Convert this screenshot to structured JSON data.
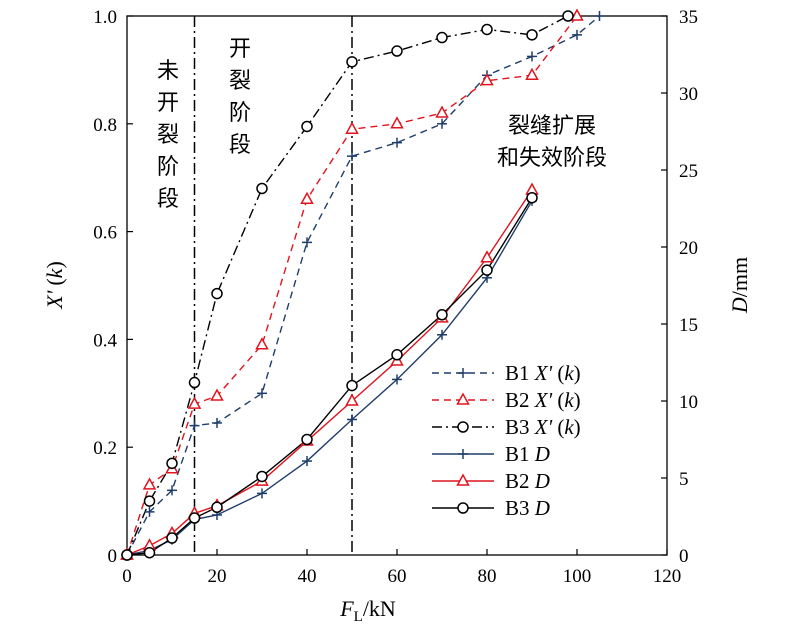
{
  "chart_data": {
    "type": "line",
    "x_axis": {
      "label_main": "F",
      "label_sub": "L",
      "label_unit": "/kN",
      "range": [
        0,
        120
      ],
      "ticks": [
        0,
        20,
        40,
        60,
        80,
        100,
        120
      ]
    },
    "y_left_axis": {
      "label_main": "X'",
      "label_paren": "(",
      "label_var": "k",
      "label_close": ")",
      "range": [
        0,
        1.0
      ],
      "ticks": [
        0,
        0.2,
        0.4,
        0.6,
        0.8,
        1.0
      ],
      "tick_labels": [
        "0",
        "0.2",
        "0.4",
        "0.6",
        "0.8",
        "1.0"
      ]
    },
    "y_right_axis": {
      "label_main": "D",
      "label_unit": "/mm",
      "range": [
        0,
        35
      ],
      "ticks": [
        0,
        5,
        10,
        15,
        20,
        25,
        30,
        35
      ]
    },
    "stage_lines_x": [
      15,
      50
    ],
    "stage_labels": {
      "stage1": [
        "未",
        "开",
        "裂",
        "阶",
        "段"
      ],
      "stage2": [
        "开",
        "裂",
        "阶",
        "段"
      ],
      "stage3": [
        "裂缝扩展",
        "和失效阶段"
      ]
    },
    "series": [
      {
        "name": "B1 X' (k)",
        "legend_prefix": "B1 ",
        "legend_var": "X'",
        "legend_suffix": " (k)",
        "axis": "left",
        "color": "#1f3d6b",
        "dash": "dashed",
        "marker": "plus",
        "x": [
          0,
          5,
          10,
          15,
          20,
          30,
          40,
          50,
          60,
          70,
          80,
          90,
          100,
          105
        ],
        "y": [
          0,
          0.08,
          0.12,
          0.24,
          0.245,
          0.3,
          0.58,
          0.74,
          0.765,
          0.8,
          0.89,
          0.925,
          0.965,
          1.0
        ]
      },
      {
        "name": "B2 X' (k)",
        "legend_prefix": "B2 ",
        "legend_var": "X'",
        "legend_suffix": " (k)",
        "axis": "left",
        "color": "#e0141e",
        "dash": "dashed",
        "marker": "triangle",
        "x": [
          0,
          5,
          10,
          15,
          20,
          30,
          40,
          50,
          60,
          70,
          80,
          90,
          100
        ],
        "y": [
          0,
          0.13,
          0.16,
          0.28,
          0.295,
          0.39,
          0.66,
          0.79,
          0.8,
          0.82,
          0.88,
          0.89,
          1.0
        ]
      },
      {
        "name": "B3 X' (k)",
        "legend_prefix": "B3 ",
        "legend_var": "X'",
        "legend_suffix": " (k)",
        "axis": "left",
        "color": "#000000",
        "dash": "dashdot",
        "marker": "circle",
        "x": [
          0,
          5,
          10,
          15,
          20,
          30,
          40,
          50,
          60,
          70,
          80,
          90,
          98
        ],
        "y": [
          0,
          0.1,
          0.17,
          0.32,
          0.485,
          0.68,
          0.795,
          0.915,
          0.935,
          0.96,
          0.975,
          0.965,
          1.0
        ]
      },
      {
        "name": "B1 D",
        "legend_prefix": "B1 ",
        "legend_var": "D",
        "legend_suffix": "",
        "axis": "right",
        "color": "#1f3d6b",
        "dash": "solid",
        "marker": "plus",
        "x": [
          0,
          5,
          10,
          15,
          20,
          30,
          40,
          50,
          60,
          70,
          80,
          90
        ],
        "y": [
          0,
          0.3,
          1.0,
          2.3,
          2.6,
          4.0,
          6.1,
          8.8,
          11.4,
          14.3,
          18.0,
          23.0
        ]
      },
      {
        "name": "B2 D",
        "legend_prefix": "B2 ",
        "legend_var": "D",
        "legend_suffix": "",
        "axis": "right",
        "color": "#e0141e",
        "dash": "solid",
        "marker": "triangle",
        "x": [
          0,
          5,
          10,
          15,
          20,
          30,
          40,
          50,
          60,
          70,
          80,
          90
        ],
        "y": [
          0,
          0.6,
          1.4,
          2.7,
          3.2,
          4.8,
          7.4,
          10.0,
          12.6,
          15.4,
          19.3,
          23.7
        ]
      },
      {
        "name": "B3 D",
        "legend_prefix": "B3 ",
        "legend_var": "D",
        "legend_suffix": "",
        "axis": "right",
        "color": "#000000",
        "dash": "solid",
        "marker": "circle",
        "x": [
          0,
          5,
          10,
          15,
          20,
          30,
          40,
          50,
          60,
          70,
          80,
          90
        ],
        "y": [
          0,
          0.15,
          1.1,
          2.4,
          3.1,
          5.1,
          7.5,
          11.0,
          13.0,
          15.6,
          18.5,
          23.2
        ]
      }
    ]
  }
}
